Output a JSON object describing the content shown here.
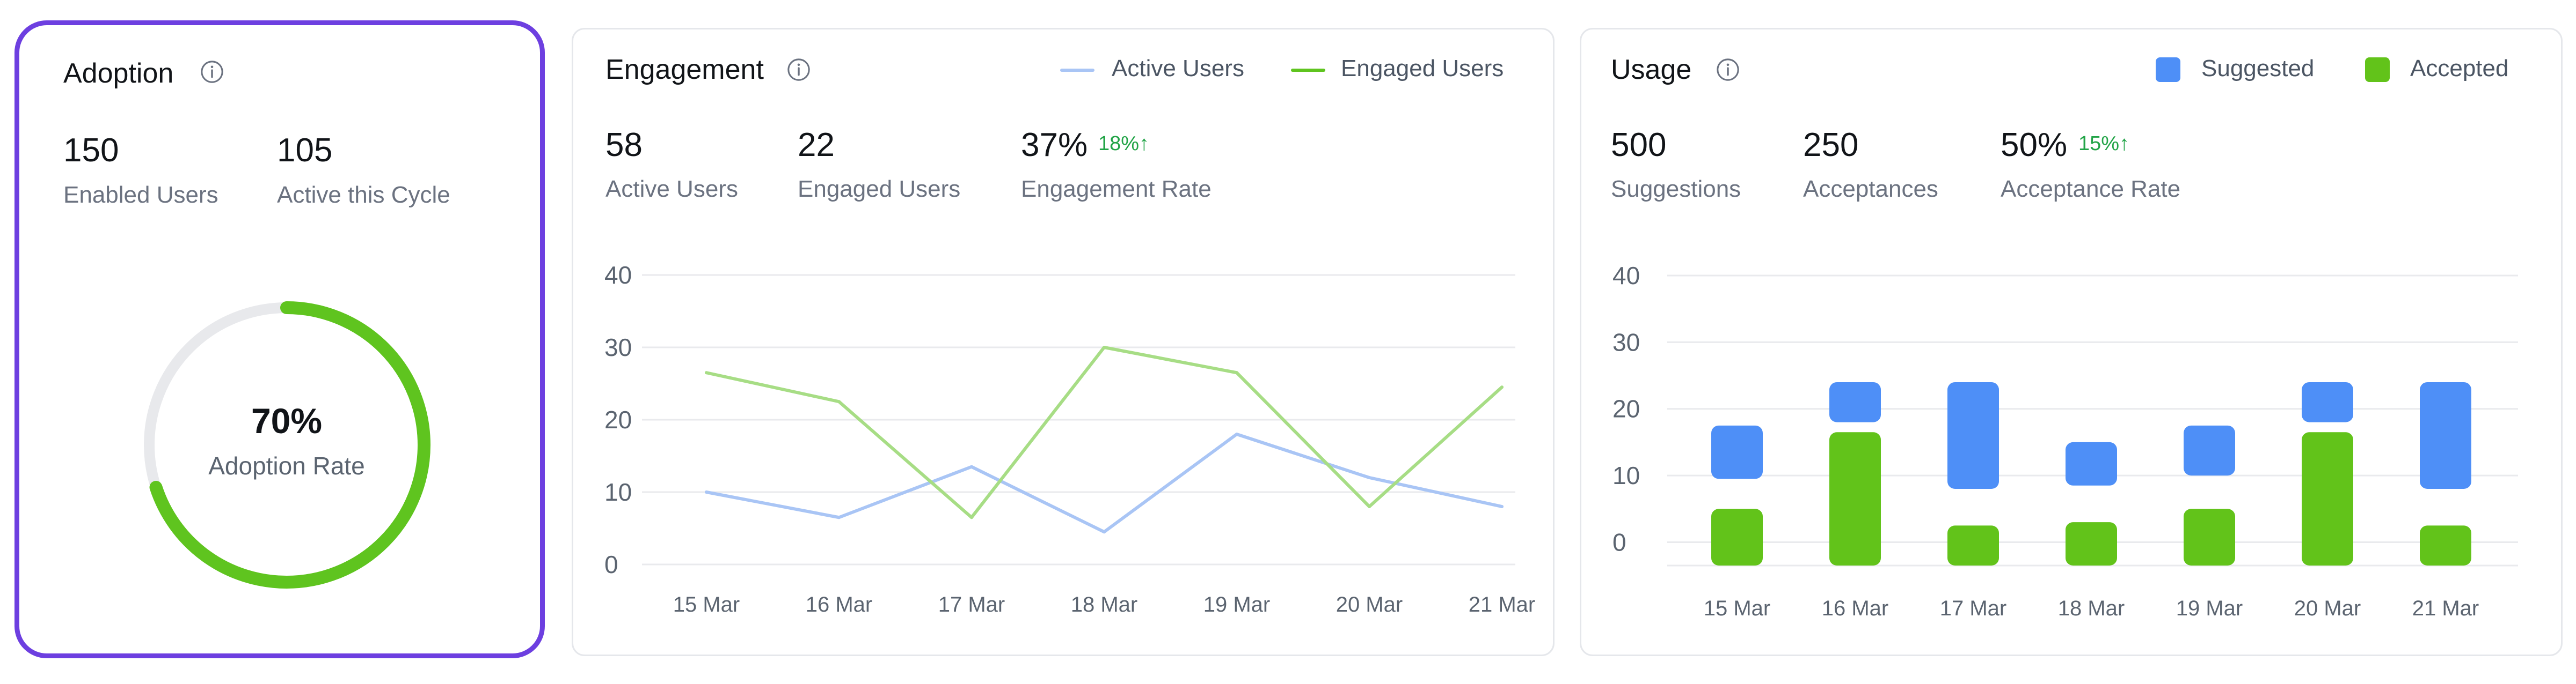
{
  "adoption": {
    "title": "Adoption",
    "icon": "info-icon",
    "stats": [
      {
        "value": "150",
        "label": "Enabled Users"
      },
      {
        "value": "105",
        "label": "Active this Cycle"
      }
    ],
    "rate": {
      "value": "70%",
      "label": "Adoption Rate",
      "fraction": 0.7
    },
    "colors": {
      "progress": "#5fc41f",
      "track": "#e8e9ec"
    }
  },
  "engagement": {
    "title": "Engagement",
    "icon": "info-icon",
    "legend": [
      {
        "label": "Active Users",
        "color": "#a9c5f5"
      },
      {
        "label": "Engaged Users",
        "color": "#5fc41f"
      }
    ],
    "stats": [
      {
        "value": "58",
        "label": "Active Users"
      },
      {
        "value": "22",
        "label": "Engaged Users"
      },
      {
        "value": "37%",
        "label": "Engagement Rate",
        "delta": "18%↑"
      }
    ]
  },
  "usage": {
    "title": "Usage",
    "icon": "info-icon",
    "legend": [
      {
        "label": "Suggested",
        "color": "#4e8ff7"
      },
      {
        "label": "Accepted",
        "color": "#62c31a"
      }
    ],
    "stats": [
      {
        "value": "500",
        "label": "Suggestions"
      },
      {
        "value": "250",
        "label": "Acceptances"
      },
      {
        "value": "50%",
        "label": "Acceptance Rate",
        "delta": "15%↑"
      }
    ]
  },
  "chart_data": [
    {
      "type": "line",
      "categories": [
        "15 Mar",
        "16 Mar",
        "17 Mar",
        "18 Mar",
        "19 Mar",
        "20 Mar",
        "21 Mar"
      ],
      "yticks": [
        "0",
        "10",
        "20",
        "30",
        "40"
      ],
      "ylim": [
        0,
        40
      ],
      "grid": true,
      "legend": "top-right",
      "series": [
        {
          "name": "Active Users",
          "values": [
            10,
            6.5,
            13.5,
            4.5,
            18,
            12,
            8
          ],
          "color": "#a9c5f5"
        },
        {
          "name": "Engaged Users",
          "values": [
            26.5,
            22.5,
            6.5,
            30,
            26.5,
            8,
            24.5
          ],
          "color": "#a7dd85"
        }
      ]
    },
    {
      "type": "bar",
      "categories": [
        "15 Mar",
        "16 Mar",
        "17 Mar",
        "18 Mar",
        "19 Mar",
        "20 Mar",
        "21 Mar"
      ],
      "yticks": [
        "0",
        "10",
        "20",
        "30",
        "40"
      ],
      "ylim": [
        -3.5,
        40
      ],
      "grid": true,
      "legend": "top-right",
      "series": [
        {
          "name": "Suggested",
          "ranges": [
            [
              9.5,
              17.5
            ],
            [
              18,
              24
            ],
            [
              8,
              24
            ],
            [
              8.5,
              15
            ],
            [
              10,
              17.5
            ],
            [
              18,
              24
            ],
            [
              8,
              24
            ]
          ],
          "color": "#4e8ff7"
        },
        {
          "name": "Accepted",
          "ranges": [
            [
              -3.5,
              5
            ],
            [
              -3.5,
              16.5
            ],
            [
              -3.5,
              2.5
            ],
            [
              -3.5,
              3
            ],
            [
              -3.5,
              5
            ],
            [
              -3.5,
              16.5
            ],
            [
              -3.5,
              2.5
            ]
          ],
          "color": "#62c31a"
        }
      ]
    }
  ]
}
